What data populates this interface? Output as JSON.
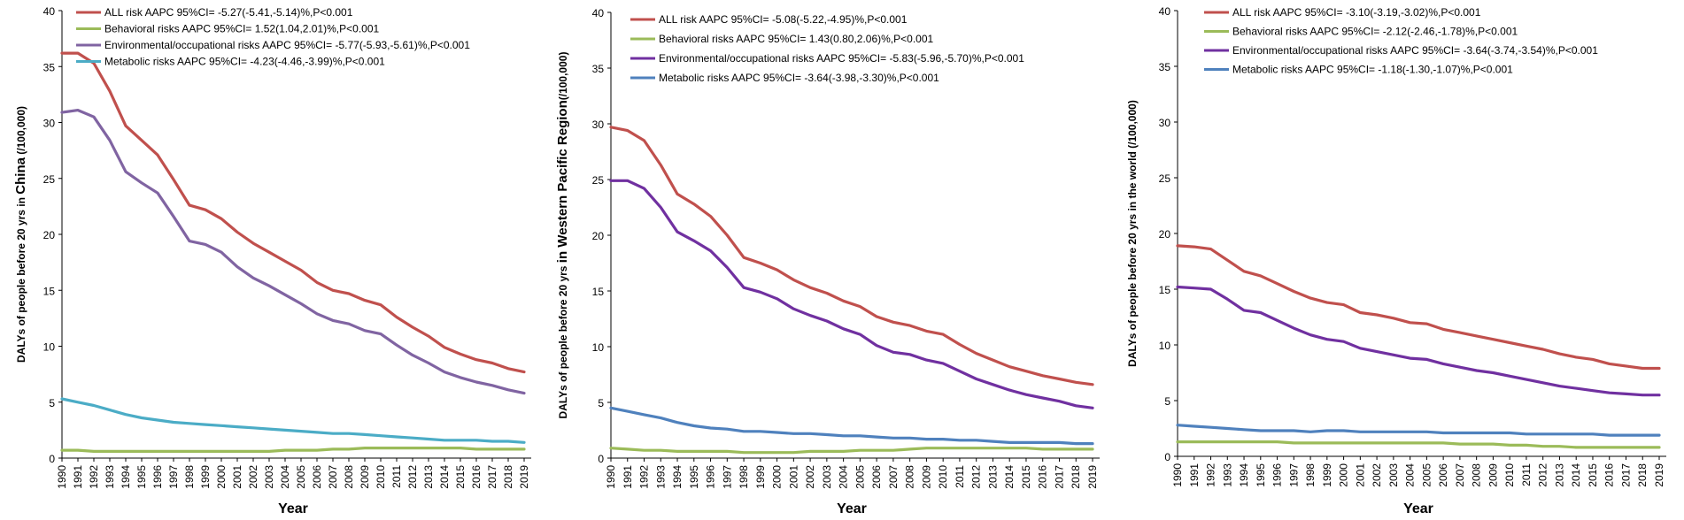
{
  "chart_data": [
    {
      "type": "line",
      "title": "",
      "xlabel": "Year",
      "ylabel_prefix": "DALYs of people before 20 yrs in ",
      "ylabel_region": "China",
      "ylabel_suffix": " (/100,000)",
      "ylim": [
        0,
        40
      ],
      "yticks": [
        0,
        5,
        10,
        15,
        20,
        25,
        30,
        35,
        40
      ],
      "categories": [
        "1990",
        "1991",
        "1992",
        "1993",
        "1994",
        "1995",
        "1996",
        "1997",
        "1998",
        "1999",
        "2000",
        "2001",
        "2002",
        "2003",
        "2004",
        "2005",
        "2006",
        "2007",
        "2008",
        "2009",
        "2010",
        "2011",
        "2012",
        "2013",
        "2014",
        "2015",
        "2016",
        "2017",
        "2018",
        "2019"
      ],
      "legend_position": "top",
      "series": [
        {
          "name": "ALL risk AAPC 95%CI= -5.27(-5.41,-5.14)%,P<0.001",
          "color": "#c0504d",
          "values": [
            36.2,
            36.2,
            35.3,
            32.8,
            29.7,
            28.4,
            27.1,
            24.9,
            22.6,
            22.2,
            21.4,
            20.2,
            19.2,
            18.4,
            17.6,
            16.8,
            15.7,
            15.0,
            14.7,
            14.1,
            13.7,
            12.6,
            11.7,
            10.9,
            9.9,
            9.3,
            8.8,
            8.5,
            8.0,
            7.7
          ]
        },
        {
          "name": "Behavioral risks AAPC 95%CI= 1.52(1.04,2.01)%,P<0.001",
          "color": "#9bbb59",
          "values": [
            0.7,
            0.7,
            0.6,
            0.6,
            0.6,
            0.6,
            0.6,
            0.6,
            0.6,
            0.6,
            0.6,
            0.6,
            0.6,
            0.6,
            0.7,
            0.7,
            0.7,
            0.8,
            0.8,
            0.9,
            0.9,
            0.9,
            0.9,
            0.9,
            0.9,
            0.9,
            0.8,
            0.8,
            0.8,
            0.8
          ]
        },
        {
          "name": "Environmental/occupational risks AAPC 95%CI= -5.77(-5.93,-5.61)%,P<0.001",
          "color": "#8064a2",
          "values": [
            30.9,
            31.1,
            30.5,
            28.4,
            25.6,
            24.6,
            23.7,
            21.6,
            19.4,
            19.1,
            18.4,
            17.1,
            16.1,
            15.4,
            14.6,
            13.8,
            12.9,
            12.3,
            12.0,
            11.4,
            11.1,
            10.1,
            9.2,
            8.5,
            7.7,
            7.2,
            6.8,
            6.5,
            6.1,
            5.8
          ]
        },
        {
          "name": "Metabolic risks AAPC 95%CI= -4.23(-4.46,-3.99)%,P<0.001",
          "color": "#4bacc6",
          "values": [
            5.3,
            5.0,
            4.7,
            4.3,
            3.9,
            3.6,
            3.4,
            3.2,
            3.1,
            3.0,
            2.9,
            2.8,
            2.7,
            2.6,
            2.5,
            2.4,
            2.3,
            2.2,
            2.2,
            2.1,
            2.0,
            1.9,
            1.8,
            1.7,
            1.6,
            1.6,
            1.6,
            1.5,
            1.5,
            1.4
          ]
        }
      ]
    },
    {
      "type": "line",
      "title": "",
      "xlabel": "Year",
      "ylabel_prefix": "DALYs of people before 20 yrs ",
      "ylabel_region": "in Western Pacific Region",
      "ylabel_suffix": "(/100,000)",
      "ylim": [
        0,
        40
      ],
      "yticks": [
        0,
        5,
        10,
        15,
        20,
        25,
        30,
        35,
        40
      ],
      "categories": [
        "1990",
        "1991",
        "1992",
        "1993",
        "1994",
        "1995",
        "1996",
        "1997",
        "1998",
        "1999",
        "2000",
        "2001",
        "2002",
        "2003",
        "2004",
        "2005",
        "2006",
        "2007",
        "2008",
        "2009",
        "2010",
        "2011",
        "2012",
        "2013",
        "2014",
        "2015",
        "2016",
        "2017",
        "2018",
        "2019"
      ],
      "legend_position": "top",
      "series": [
        {
          "name": "ALL risk AAPC 95%CI= -5.08(-5.22,-4.95)%,P<0.001",
          "color": "#c0504d",
          "values": [
            29.7,
            29.4,
            28.5,
            26.3,
            23.7,
            22.8,
            21.7,
            20.0,
            18.0,
            17.5,
            16.9,
            16.0,
            15.3,
            14.8,
            14.1,
            13.6,
            12.7,
            12.2,
            11.9,
            11.4,
            11.1,
            10.2,
            9.4,
            8.8,
            8.2,
            7.8,
            7.4,
            7.1,
            6.8,
            6.6
          ]
        },
        {
          "name": "Behavioral risks AAPC 95%CI= 1.43(0.80,2.06)%,P<0.001",
          "color": "#9bbb59",
          "values": [
            0.9,
            0.8,
            0.7,
            0.7,
            0.6,
            0.6,
            0.6,
            0.6,
            0.5,
            0.5,
            0.5,
            0.5,
            0.6,
            0.6,
            0.6,
            0.7,
            0.7,
            0.7,
            0.8,
            0.9,
            0.9,
            0.9,
            0.9,
            0.9,
            0.9,
            0.9,
            0.8,
            0.8,
            0.8,
            0.8
          ]
        },
        {
          "name": "Environmental/occupational risks AAPC 95%CI= -5.83(-5.96,-5.70)%,P<0.001",
          "color": "#7030a0",
          "values": [
            24.9,
            24.9,
            24.2,
            22.5,
            20.3,
            19.5,
            18.6,
            17.1,
            15.3,
            14.9,
            14.3,
            13.4,
            12.8,
            12.3,
            11.6,
            11.1,
            10.1,
            9.5,
            9.3,
            8.8,
            8.5,
            7.8,
            7.1,
            6.6,
            6.1,
            5.7,
            5.4,
            5.1,
            4.7,
            4.5
          ]
        },
        {
          "name": "Metabolic risks AAPC 95%CI= -3.64(-3.98,-3.30)%,P<0.001",
          "color": "#4f81bd",
          "values": [
            4.5,
            4.2,
            3.9,
            3.6,
            3.2,
            2.9,
            2.7,
            2.6,
            2.4,
            2.4,
            2.3,
            2.2,
            2.2,
            2.1,
            2.0,
            2.0,
            1.9,
            1.8,
            1.8,
            1.7,
            1.7,
            1.6,
            1.6,
            1.5,
            1.4,
            1.4,
            1.4,
            1.4,
            1.3,
            1.3
          ]
        }
      ]
    },
    {
      "type": "line",
      "title": "",
      "xlabel": "Year",
      "ylabel_prefix": "DALYs of people before 20 yrs in the world",
      "ylabel_region": "",
      "ylabel_suffix": " (/100,000)",
      "ylim": [
        0,
        40
      ],
      "yticks": [
        0,
        5,
        10,
        15,
        20,
        25,
        30,
        35,
        40
      ],
      "categories": [
        "1990",
        "1991",
        "1992",
        "1993",
        "1994",
        "1995",
        "1996",
        "1997",
        "1998",
        "1999",
        "2000",
        "2001",
        "2002",
        "2003",
        "2004",
        "2005",
        "2006",
        "2007",
        "2008",
        "2009",
        "2010",
        "2011",
        "2012",
        "2013",
        "2014",
        "2015",
        "2016",
        "2017",
        "2018",
        "2019"
      ],
      "legend_position": "top",
      "series": [
        {
          "name": "ALL risk AAPC 95%CI= -3.10(-3.19,-3.02)%,P<0.001",
          "color": "#c0504d",
          "values": [
            18.9,
            18.8,
            18.6,
            17.6,
            16.6,
            16.2,
            15.5,
            14.8,
            14.2,
            13.8,
            13.6,
            12.9,
            12.7,
            12.4,
            12.0,
            11.9,
            11.4,
            11.1,
            10.8,
            10.5,
            10.2,
            9.9,
            9.6,
            9.2,
            8.9,
            8.7,
            8.3,
            8.1,
            7.9,
            7.9
          ]
        },
        {
          "name": "Behavioral risks AAPC 95%CI= -2.12(-2.46,-1.78)%,P<0.001",
          "color": "#9bbb59",
          "values": [
            1.3,
            1.3,
            1.3,
            1.3,
            1.3,
            1.3,
            1.3,
            1.2,
            1.2,
            1.2,
            1.2,
            1.2,
            1.2,
            1.2,
            1.2,
            1.2,
            1.2,
            1.1,
            1.1,
            1.1,
            1.0,
            1.0,
            0.9,
            0.9,
            0.8,
            0.8,
            0.8,
            0.8,
            0.8,
            0.8
          ]
        },
        {
          "name": "Environmental/occupational risks AAPC 95%CI= -3.64(-3.74,-3.54)%,P<0.001",
          "color": "#7030a0",
          "values": [
            15.2,
            15.1,
            15.0,
            14.1,
            13.1,
            12.9,
            12.2,
            11.5,
            10.9,
            10.5,
            10.3,
            9.7,
            9.4,
            9.1,
            8.8,
            8.7,
            8.3,
            8.0,
            7.7,
            7.5,
            7.2,
            6.9,
            6.6,
            6.3,
            6.1,
            5.9,
            5.7,
            5.6,
            5.5,
            5.5
          ]
        },
        {
          "name": "Metabolic risks AAPC 95%CI= -1.18(-1.30,-1.07)%,P<0.001",
          "color": "#4f81bd",
          "values": [
            2.8,
            2.7,
            2.6,
            2.5,
            2.4,
            2.3,
            2.3,
            2.3,
            2.2,
            2.3,
            2.3,
            2.2,
            2.2,
            2.2,
            2.2,
            2.2,
            2.1,
            2.1,
            2.1,
            2.1,
            2.1,
            2.0,
            2.0,
            2.0,
            2.0,
            2.0,
            1.9,
            1.9,
            1.9,
            1.9
          ]
        }
      ]
    }
  ]
}
